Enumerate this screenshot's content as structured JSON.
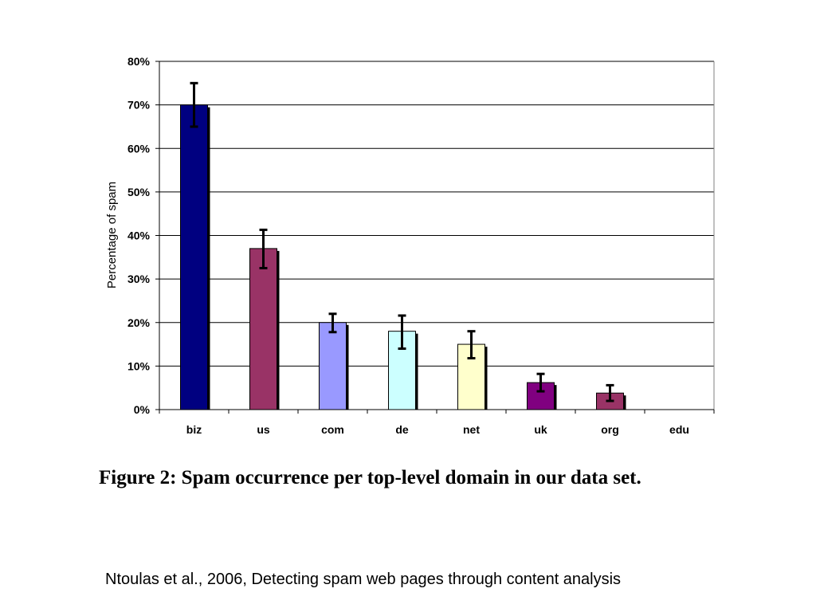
{
  "chart_data": {
    "type": "bar",
    "title": "",
    "xlabel": "",
    "ylabel": "Percentage of spam",
    "ylim": [
      0,
      80
    ],
    "yticks": [
      0,
      10,
      20,
      30,
      40,
      50,
      60,
      70,
      80
    ],
    "ytick_suffix": "%",
    "grid": "horizontal",
    "categories": [
      "biz",
      "us",
      "com",
      "de",
      "net",
      "uk",
      "org",
      "edu"
    ],
    "values": [
      70,
      37,
      20,
      18,
      15,
      6.2,
      3.8,
      0
    ],
    "errors": [
      [
        65,
        75
      ],
      [
        32.5,
        41.3
      ],
      [
        17.8,
        22
      ],
      [
        14,
        21.6
      ],
      [
        11.8,
        18
      ],
      [
        4.2,
        8.2
      ],
      [
        2,
        5.6
      ],
      null
    ],
    "colors": [
      "#000080",
      "#993366",
      "#9999ff",
      "#ccffff",
      "#ffffcc",
      "#800080",
      "#993366",
      "#ffffff"
    ]
  },
  "caption": "Figure 2:  Spam occurrence per top-level domain in our data set.",
  "citation": "Ntoulas et al., 2006, Detecting spam web pages through content analysis"
}
